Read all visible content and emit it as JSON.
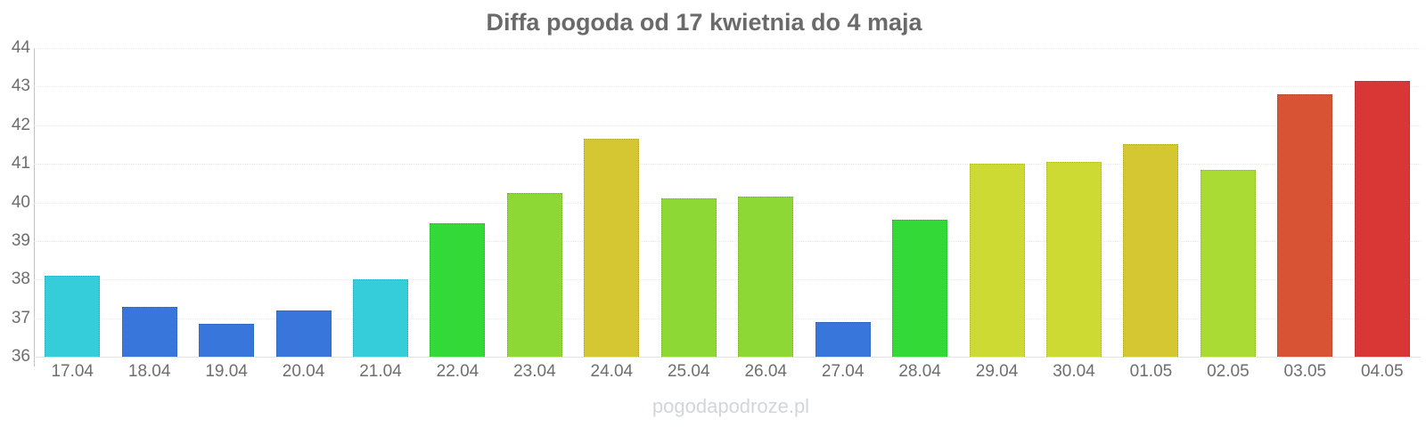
{
  "title": "Diffa pogoda od 17 kwietnia do 4 maja",
  "watermark": "pogodapodroze.pl",
  "colors": {
    "title_text": "#6a6a6a",
    "tick_text": "#6e6e6e",
    "axis_line": "#c2c2c2",
    "gridline": "#e9e9e9",
    "watermark_text": "#d2d5d9",
    "background": "#ffffff"
  },
  "chart_data": {
    "type": "bar",
    "title": "Diffa pogoda od 17 kwietnia do 4 maja",
    "xlabel": "",
    "ylabel": "",
    "ylim": [
      36,
      44
    ],
    "grid": true,
    "legend": "none",
    "yticks": [
      44,
      43,
      42,
      41,
      40,
      39,
      38,
      37,
      36
    ],
    "categories": [
      "17.04",
      "18.04",
      "19.04",
      "20.04",
      "21.04",
      "22.04",
      "23.04",
      "24.04",
      "25.04",
      "26.04",
      "27.04",
      "28.04",
      "29.04",
      "30.04",
      "01.05",
      "02.05",
      "03.05",
      "04.05"
    ],
    "values": [
      38.1,
      37.3,
      36.85,
      37.2,
      38.0,
      39.45,
      40.25,
      41.65,
      40.1,
      40.15,
      36.9,
      39.55,
      41.0,
      41.05,
      41.5,
      40.85,
      42.8,
      43.15
    ],
    "bar_colors": [
      "#35cdd9",
      "#3876db",
      "#3876db",
      "#3876db",
      "#35cdd9",
      "#33d936",
      "#8dd835",
      "#d4c732",
      "#8dd835",
      "#8dd835",
      "#3876db",
      "#33d936",
      "#cdda33",
      "#cdda33",
      "#d4c732",
      "#a9db34",
      "#d85334",
      "#d93636"
    ]
  }
}
